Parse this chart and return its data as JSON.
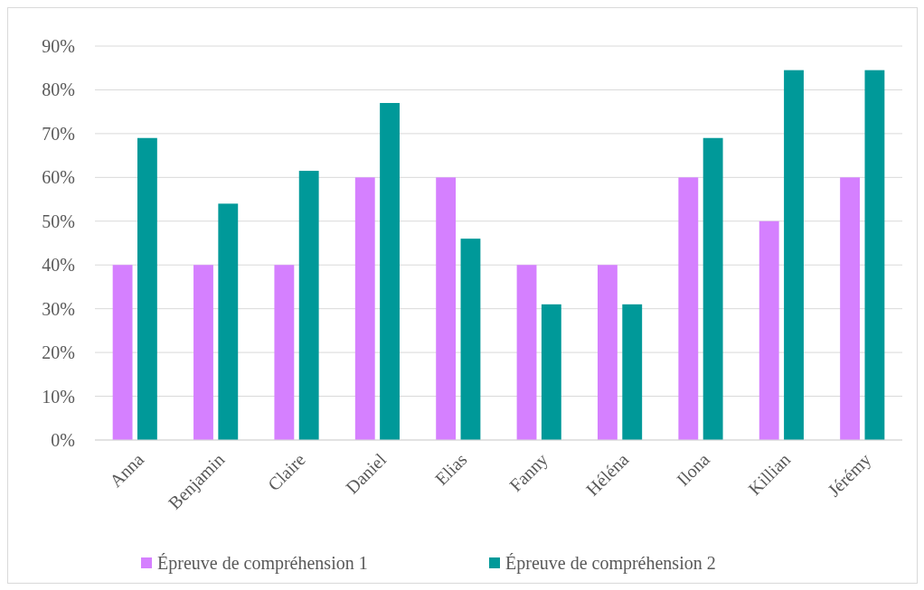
{
  "chart_data": {
    "type": "bar",
    "categories": [
      "Anna",
      "Benjamin",
      "Claire",
      "Daniel",
      "Elias",
      "Fanny",
      "Héléna",
      "Ilona",
      "Killian",
      "Jérémy"
    ],
    "series": [
      {
        "name": "Épreuve de compréhension 1",
        "color": "#d580ff",
        "values": [
          40,
          40,
          40,
          60,
          60,
          40,
          40,
          60,
          50,
          60
        ]
      },
      {
        "name": "Épreuve de compréhension 2",
        "color": "#009999",
        "values": [
          69,
          54,
          61.5,
          77,
          46,
          31,
          31,
          69,
          84.5,
          84.5
        ]
      }
    ],
    "ylim": [
      0,
      90
    ],
    "yticks": [
      {
        "value": 0,
        "label": "0%"
      },
      {
        "value": 10,
        "label": "10%"
      },
      {
        "value": 20,
        "label": "20%"
      },
      {
        "value": 30,
        "label": "30%"
      },
      {
        "value": 40,
        "label": "40%"
      },
      {
        "value": 50,
        "label": "50%"
      },
      {
        "value": 60,
        "label": "60%"
      },
      {
        "value": 70,
        "label": "70%"
      },
      {
        "value": 80,
        "label": "80%"
      },
      {
        "value": 90,
        "label": "90%"
      }
    ],
    "grid": "y",
    "legend": "bottom"
  }
}
